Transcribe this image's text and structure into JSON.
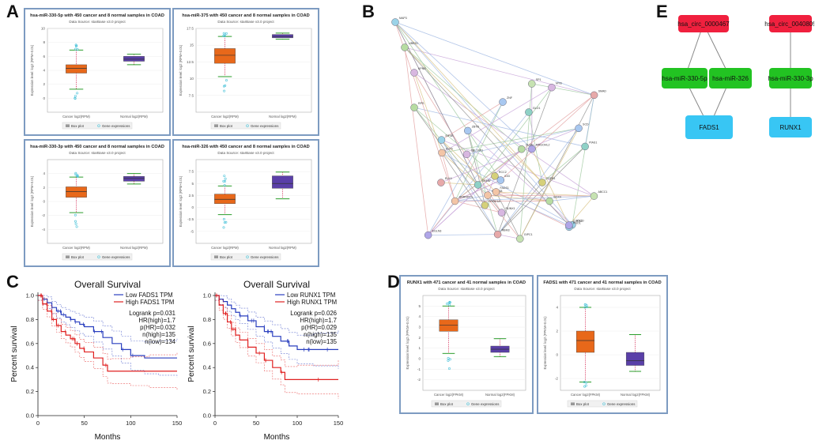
{
  "panels": {
    "A": "A",
    "B": "B",
    "C": "C",
    "D": "D",
    "E": "E"
  },
  "chart_data": [
    {
      "type": "box",
      "id": "A1",
      "title": "hsa-miR-330-5p with 450 cancer and 8 normal samples in COAD",
      "source": "Data Source: starBase v3.0 project",
      "ylabel": "Expression level: log2 (RPM+0.01)",
      "ylim": [
        -2,
        10
      ],
      "yticks": [
        0,
        2,
        4,
        6,
        8,
        10
      ],
      "groups": [
        {
          "name": "Cancer log2(RPM)",
          "q1": 3.6,
          "median": 4.3,
          "q3": 4.8,
          "min": 1.3,
          "max": 6.9,
          "color": "#e8681a"
        },
        {
          "name": "Normal log2(RPM)",
          "q1": 5.3,
          "median": 5.6,
          "q3": 6.0,
          "min": 4.8,
          "max": 6.3,
          "color": "#5a3fa8"
        }
      ],
      "legend": [
        "Box plot",
        "Gene expressions"
      ]
    },
    {
      "type": "box",
      "id": "A2",
      "title": "hsa-miR-375 with 450 cancer and 8 normal samples in COAD",
      "source": "Data Source: starBase v3.0 project",
      "ylabel": "Expression level: log2 (RPM+0.01)",
      "ylim": [
        5,
        17.5
      ],
      "yticks": [
        7.5,
        10,
        12.5,
        15,
        17.5
      ],
      "groups": [
        {
          "name": "Cancer log2(RPM)",
          "q1": 12.3,
          "median": 13.5,
          "q3": 14.5,
          "min": 10.3,
          "max": 16.3,
          "color": "#e8681a"
        },
        {
          "name": "Normal log2(RPM)",
          "q1": 16.1,
          "median": 16.3,
          "q3": 16.6,
          "min": 15.9,
          "max": 16.8,
          "color": "#5a3fa8"
        }
      ],
      "legend": [
        "Box plot",
        "Gene expressions"
      ]
    },
    {
      "type": "box",
      "id": "A3",
      "title": "hsa-miR-330-3p with 450 cancer and 8 normal samples in COAD",
      "source": "Data Source: starBase v3.0 project",
      "ylabel": "Expression level: log2 (RPM+0.01)",
      "ylim": [
        -6,
        6
      ],
      "yticks": [
        -4,
        -2,
        0,
        2,
        4
      ],
      "groups": [
        {
          "name": "Cancer log2(RPM)",
          "q1": 0.6,
          "median": 1.4,
          "q3": 2.1,
          "min": -1.6,
          "max": 3.5,
          "color": "#e8681a"
        },
        {
          "name": "Normal log2(RPM)",
          "q1": 2.9,
          "median": 3.3,
          "q3": 3.6,
          "min": 2.5,
          "max": 4.0,
          "color": "#5a3fa8"
        }
      ],
      "legend": [
        "Box plot",
        "Gene expressions"
      ]
    },
    {
      "type": "box",
      "id": "A4",
      "title": "hsa-miR-326 with 450 cancer and 8 normal samples in COAD",
      "source": "Data Source: starBase v3.0 project",
      "ylabel": "Expression level: log2 (RPM+0.01)",
      "ylim": [
        -7.5,
        10
      ],
      "yticks": [
        -5,
        -2.5,
        0,
        2.5,
        5,
        7.5
      ],
      "groups": [
        {
          "name": "Cancer log2(RPM)",
          "q1": 0.8,
          "median": 1.7,
          "q3": 2.8,
          "min": -1.5,
          "max": 4.5,
          "color": "#e8681a"
        },
        {
          "name": "Normal log2(RPM)",
          "q1": 4.0,
          "median": 5.0,
          "q3": 6.6,
          "min": 1.8,
          "max": 7.4,
          "color": "#5a3fa8"
        }
      ],
      "legend": [
        "Box plot",
        "Gene expressions"
      ]
    },
    {
      "type": "line",
      "id": "C1",
      "title": "Overall Survival",
      "xlabel": "Months",
      "ylabel": "Percent survival",
      "xlim": [
        0,
        150
      ],
      "ylim": [
        0,
        1
      ],
      "xticks": [
        0,
        50,
        100,
        150
      ],
      "yticks": [
        0,
        0.2,
        0.4,
        0.6,
        0.8,
        1.0
      ],
      "series": [
        {
          "name": "Low FADS1 TPM",
          "color": "#2a3fbf",
          "x": [
            0,
            5,
            10,
            15,
            20,
            25,
            30,
            35,
            40,
            45,
            50,
            60,
            70,
            80,
            90,
            100,
            115,
            130,
            150
          ],
          "y": [
            1.0,
            0.97,
            0.94,
            0.9,
            0.87,
            0.84,
            0.82,
            0.8,
            0.78,
            0.76,
            0.74,
            0.7,
            0.65,
            0.6,
            0.55,
            0.5,
            0.48,
            0.48,
            0.48
          ]
        },
        {
          "name": "High FADS1 TPM",
          "color": "#e02020",
          "x": [
            0,
            5,
            10,
            15,
            20,
            25,
            30,
            35,
            40,
            45,
            50,
            60,
            70,
            75,
            80,
            100,
            120,
            150
          ],
          "y": [
            1.0,
            0.93,
            0.87,
            0.8,
            0.75,
            0.7,
            0.67,
            0.64,
            0.6,
            0.56,
            0.53,
            0.48,
            0.42,
            0.37,
            0.37,
            0.37,
            0.37,
            0.37
          ]
        }
      ],
      "stats": [
        "Logrank p=0.031",
        "HR(high)=1.7",
        "p(HR)=0.032",
        "n(high)=135",
        "n(low)=134"
      ]
    },
    {
      "type": "line",
      "id": "C2",
      "title": "Overall Survival",
      "xlabel": "Months",
      "ylabel": "Percent survival",
      "xlim": [
        0,
        150
      ],
      "ylim": [
        0,
        1
      ],
      "xticks": [
        0,
        50,
        100,
        150
      ],
      "yticks": [
        0,
        0.2,
        0.4,
        0.6,
        0.8,
        1.0
      ],
      "series": [
        {
          "name": "Low RUNX1 TPM",
          "color": "#2a3fbf",
          "x": [
            0,
            5,
            10,
            15,
            20,
            25,
            30,
            40,
            50,
            60,
            70,
            80,
            90,
            100,
            120,
            150
          ],
          "y": [
            1.0,
            0.97,
            0.95,
            0.92,
            0.89,
            0.86,
            0.83,
            0.79,
            0.74,
            0.7,
            0.66,
            0.62,
            0.58,
            0.55,
            0.55,
            0.55
          ]
        },
        {
          "name": "High RUNX1 TPM",
          "color": "#e02020",
          "x": [
            0,
            5,
            10,
            15,
            20,
            25,
            30,
            40,
            50,
            60,
            70,
            80,
            85,
            100,
            150
          ],
          "y": [
            1.0,
            0.92,
            0.85,
            0.78,
            0.72,
            0.67,
            0.63,
            0.57,
            0.52,
            0.46,
            0.4,
            0.36,
            0.3,
            0.3,
            0.3
          ]
        }
      ],
      "stats": [
        "Logrank p=0.026",
        "HR(high)=1.7",
        "p(HR)=0.029",
        "n(high)=135",
        "n(low)=135"
      ]
    },
    {
      "type": "box",
      "id": "D1",
      "title": "RUNX1 with 471 cancer and 41 normal samples in COAD",
      "source": "Data Source: starBase v3.0 project",
      "ylabel": "Expression level: log2 (FPKM+0.01)",
      "ylim": [
        -3,
        6
      ],
      "yticks": [
        -2,
        -1,
        0,
        1,
        2,
        3,
        4,
        5
      ],
      "groups": [
        {
          "name": "Cancer log2(FPKM)",
          "q1": 2.6,
          "median": 3.2,
          "q3": 3.7,
          "min": 0.5,
          "max": 5.0,
          "color": "#e8681a"
        },
        {
          "name": "Normal log2(FPKM)",
          "q1": 0.6,
          "median": 0.9,
          "q3": 1.2,
          "min": 0.2,
          "max": 1.9,
          "color": "#5a3fa8"
        }
      ],
      "legend": [
        "Box plot",
        "Gene expressions"
      ]
    },
    {
      "type": "box",
      "id": "D2",
      "title": "FADS1 with 471 cancer and 41 normal samples in COAD",
      "source": "Data Source: starBase v3.0 project",
      "ylabel": "Expression level: log2 (FPKM+0.01)",
      "ylim": [
        -3,
        5
      ],
      "yticks": [
        -2,
        0,
        2,
        4
      ],
      "groups": [
        {
          "name": "Cancer log2(FPKM)",
          "q1": 0.2,
          "median": 1.2,
          "q3": 2.0,
          "min": -2.3,
          "max": 4.0,
          "color": "#e8681a"
        },
        {
          "name": "Normal log2(FPKM)",
          "q1": -0.9,
          "median": -0.5,
          "q3": 0.2,
          "min": -1.4,
          "max": 1.7,
          "color": "#5a3fa8"
        }
      ],
      "legend": [
        "Box plot",
        "Gene expressions"
      ]
    }
  ],
  "network_b": {
    "nodes": [
      "MAP3",
      "UBE2D",
      "KPNB",
      "HNRNPC1",
      "IDI3",
      "ABCC1",
      "ELK4",
      "MAGOHL2",
      "SREBF",
      "RCC2",
      "RTCD",
      "CLDN",
      "TBL1XR1",
      "RNF168",
      "ZNF",
      "GIPC1",
      "SMAD",
      "EGLN3",
      "GLO1",
      "TGFB1",
      "PNO1",
      "RPS",
      "RUNX1",
      "FADS1",
      "SCD",
      "SP1",
      "RBM3",
      "CDC42",
      "PIAS1",
      "DYRK1A",
      "EIF4E",
      "SOX4",
      "MYB",
      "KLF5",
      "ZBTB"
    ]
  },
  "network_e": {
    "circ1": "hsa_circ_0000467",
    "circ2": "hsa_circ_0040809",
    "mir1": "hsa-miR-330-5p",
    "mir2": "hsa-miR-326",
    "mir3": "hsa-miR-330-3p",
    "gene1": "FADS1",
    "gene2": "RUNX1",
    "colors": {
      "circ": "#f0203e",
      "mir": "#22c322",
      "gene": "#38c6f4"
    }
  }
}
